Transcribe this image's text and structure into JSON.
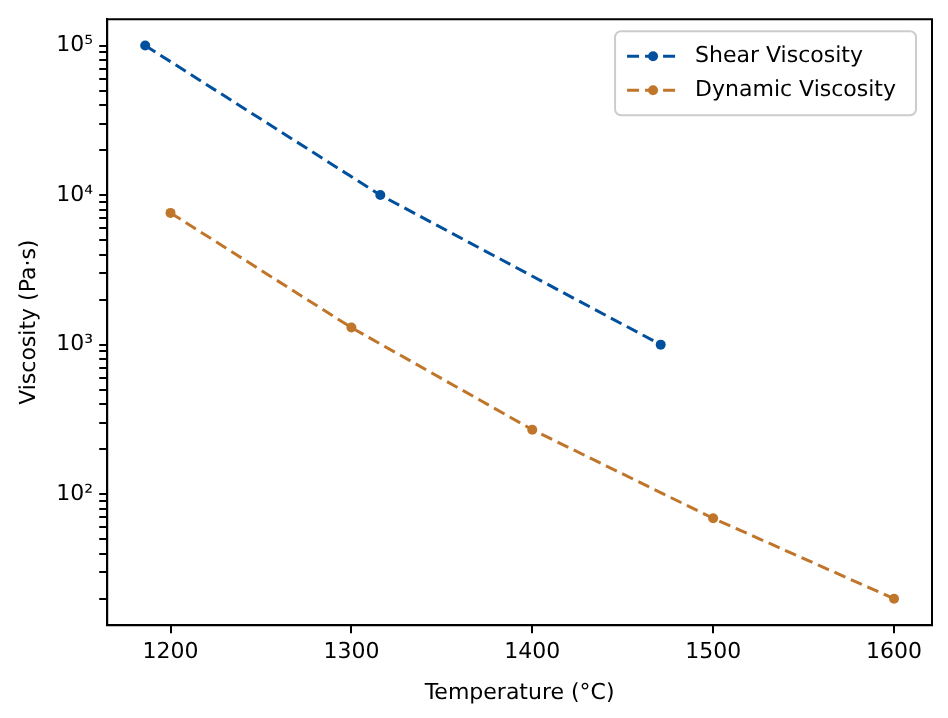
{
  "chart_data": {
    "type": "line",
    "xlabel": "Temperature (°C)",
    "ylabel": "Viscosity (Pa·s)",
    "xlim": [
      1165,
      1621
    ],
    "xticks": [
      1200,
      1300,
      1400,
      1500,
      1600
    ],
    "log": "y",
    "ylim": [
      13.3,
      150000
    ],
    "yticks": [
      {
        "value": 100,
        "label": "10²"
      },
      {
        "value": 1000,
        "label": "10³"
      },
      {
        "value": 10000,
        "label": "10⁴"
      },
      {
        "value": 100000,
        "label": "10⁵"
      },
      {
        "value": 20,
        "label": null
      },
      {
        "value": 30,
        "label": null
      },
      {
        "value": 40,
        "label": null
      },
      {
        "value": 50,
        "label": null
      },
      {
        "value": 60,
        "label": null
      },
      {
        "value": 70,
        "label": null
      },
      {
        "value": 80,
        "label": null
      },
      {
        "value": 90,
        "label": null
      },
      {
        "value": 200,
        "label": null
      },
      {
        "value": 300,
        "label": null
      },
      {
        "value": 400,
        "label": null
      },
      {
        "value": 500,
        "label": null
      },
      {
        "value": 600,
        "label": null
      },
      {
        "value": 700,
        "label": null
      },
      {
        "value": 800,
        "label": null
      },
      {
        "value": 900,
        "label": null
      },
      {
        "value": 2000,
        "label": null
      },
      {
        "value": 3000,
        "label": null
      },
      {
        "value": 4000,
        "label": null
      },
      {
        "value": 5000,
        "label": null
      },
      {
        "value": 6000,
        "label": null
      },
      {
        "value": 7000,
        "label": null
      },
      {
        "value": 8000,
        "label": null
      },
      {
        "value": 9000,
        "label": null
      },
      {
        "value": 20000,
        "label": null
      },
      {
        "value": 30000,
        "label": null
      },
      {
        "value": 40000,
        "label": null
      },
      {
        "value": 50000,
        "label": null
      },
      {
        "value": 60000,
        "label": null
      },
      {
        "value": 70000,
        "label": null
      },
      {
        "value": 80000,
        "label": null
      },
      {
        "value": 90000,
        "label": null
      }
    ],
    "grid": false,
    "legend": "top right",
    "marker": "circle",
    "line_style": "dashed",
    "series": [
      {
        "name": "Shear Viscosity",
        "color": "#00509e",
        "x": [
          1186,
          1316,
          1471
        ],
        "values": [
          100000,
          10000,
          1000
        ]
      },
      {
        "name": "Dynamic Viscosity",
        "color": "#c0762a",
        "x": [
          1200,
          1300,
          1400,
          1500,
          1600
        ],
        "values": [
          7600,
          1300,
          270,
          69,
          20
        ]
      }
    ]
  }
}
